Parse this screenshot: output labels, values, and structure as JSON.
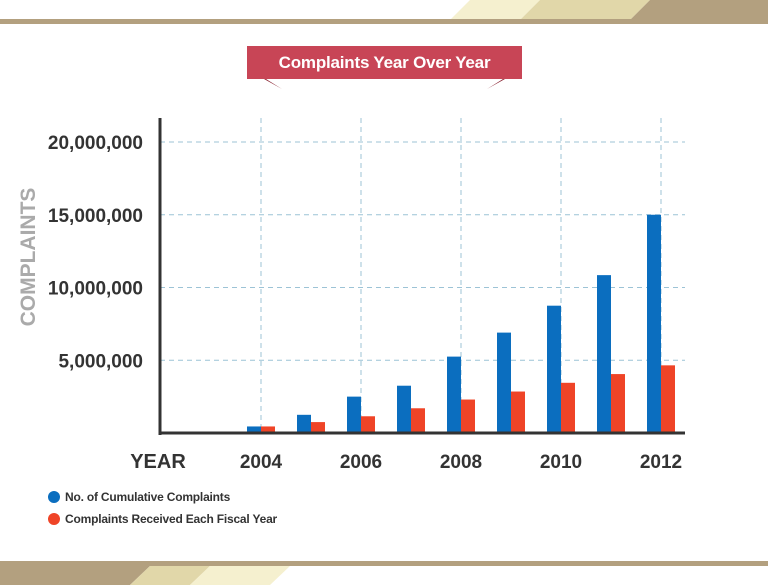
{
  "colors": {
    "cumulative": "#0b6ebf",
    "fiscal": "#ef4427",
    "axis": "#333333",
    "grid": "#9cc3d6",
    "ylabel": "#aaaaaa",
    "ribbon": "#c84556",
    "ribbon_fold": "#8e2c3a",
    "band_line": "#b3a07f",
    "band_dark": "#b3a07f",
    "band_light": "#f5f0cf",
    "band_mid": "#e1d7a9"
  },
  "chart_data": {
    "type": "bar",
    "title": "Complaints Year Over Year",
    "xlabel": "YEAR",
    "ylabel": "COMPLAINTS",
    "x": [
      2004,
      2005,
      2006,
      2007,
      2008,
      2009,
      2010,
      2011,
      2012
    ],
    "xtick_labels": [
      "2004",
      "2006",
      "2008",
      "2010",
      "2012"
    ],
    "xtick_values": [
      2004,
      2006,
      2008,
      2010,
      2012
    ],
    "ytick_labels": [
      "5,000,000",
      "10,000,000",
      "15,000,000",
      "20,000,000"
    ],
    "ytick_values": [
      5000000,
      10000000,
      15000000,
      20000000
    ],
    "ylim": [
      0,
      20000000
    ],
    "grid": true,
    "legend": "bottom-left",
    "series": [
      {
        "name": "No. of Cumulative Complaints",
        "values": [
          450000,
          1250000,
          2500000,
          3250000,
          5250000,
          6900000,
          8750000,
          10850000,
          15000000
        ]
      },
      {
        "name": "Complaints Received Each Fiscal Year",
        "values": [
          450000,
          750000,
          1150000,
          1700000,
          2300000,
          2850000,
          3450000,
          4050000,
          4650000
        ]
      }
    ]
  }
}
